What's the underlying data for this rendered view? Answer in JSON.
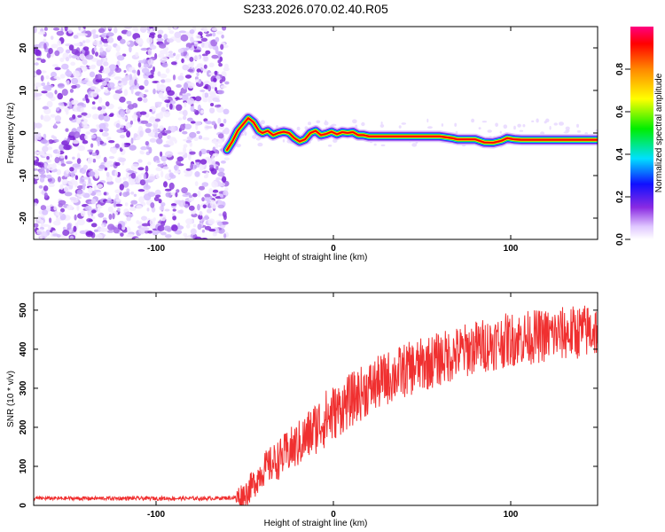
{
  "title": "S233.2026.070.02.40.R05",
  "chart_data": [
    {
      "type": "heatmap",
      "name": "spectrogram",
      "xlabel": "Height of straight line (km)",
      "ylabel": "Frequency (Hz)",
      "xlim": [
        -169,
        149
      ],
      "ylim": [
        -25,
        25
      ],
      "xticks": [
        -100,
        0,
        100
      ],
      "yticks": [
        -20,
        -10,
        0,
        10,
        20
      ],
      "noise_region_x": [
        -169,
        -60
      ],
      "signal_track": {
        "x": [
          -60,
          -57,
          -54,
          -51,
          -48,
          -45,
          -42,
          -40,
          -37,
          -34,
          -31,
          -28,
          -25,
          -22,
          -19,
          -16,
          -13,
          -10,
          -7,
          -4,
          -1,
          2,
          5,
          8,
          11,
          14,
          17,
          20,
          40,
          60,
          67,
          70,
          75,
          80,
          85,
          90,
          93,
          95,
          98,
          102,
          106,
          110,
          120,
          130,
          140,
          149
        ],
        "y": [
          -4,
          -2,
          0.5,
          2,
          3.5,
          2.5,
          0.5,
          0,
          0.5,
          -0.5,
          0,
          0.3,
          0,
          -1.2,
          -2,
          -1.5,
          0,
          0.5,
          -0.5,
          -0.2,
          0.3,
          -0.3,
          0.2,
          0,
          0.2,
          -0.5,
          -0.5,
          -0.8,
          -0.8,
          -0.8,
          -1.2,
          -1.5,
          -1.5,
          -1.5,
          -2.2,
          -2.3,
          -2,
          -1.8,
          -1.2,
          -1.5,
          -1.6,
          -1.6,
          -1.6,
          -1.6,
          -1.6,
          -1.6
        ]
      },
      "colorbar": {
        "label": "Normalized spectral amplitude",
        "range": [
          0,
          1
        ],
        "ticks": [
          0.0,
          0.2,
          0.4,
          0.6,
          0.8
        ],
        "tick_labels": [
          "0.0",
          "0.2",
          "0.4",
          "0.6",
          "0.8"
        ]
      }
    },
    {
      "type": "line",
      "name": "snr",
      "xlabel": "Height of straight line (km)",
      "ylabel": "SNR (10 * v/v)",
      "xlim": [
        -169,
        149
      ],
      "ylim": [
        0,
        545
      ],
      "xticks": [
        -100,
        0,
        100
      ],
      "yticks": [
        0,
        100,
        200,
        300,
        400,
        500
      ],
      "color": "#f03030",
      "series": [
        {
          "name": "SNR",
          "x": [
            -169,
            -150,
            -130,
            -110,
            -90,
            -70,
            -55,
            -50,
            -45,
            -40,
            -35,
            -30,
            -25,
            -20,
            -15,
            -10,
            -5,
            0,
            10,
            20,
            30,
            40,
            50,
            60,
            70,
            80,
            90,
            100,
            110,
            120,
            130,
            140,
            149
          ],
          "y": [
            18,
            18,
            18,
            18,
            18,
            18,
            20,
            28,
            55,
            90,
            105,
            120,
            140,
            155,
            175,
            200,
            220,
            235,
            270,
            300,
            325,
            345,
            360,
            375,
            390,
            405,
            415,
            425,
            430,
            435,
            440,
            445,
            450
          ]
        }
      ]
    }
  ]
}
